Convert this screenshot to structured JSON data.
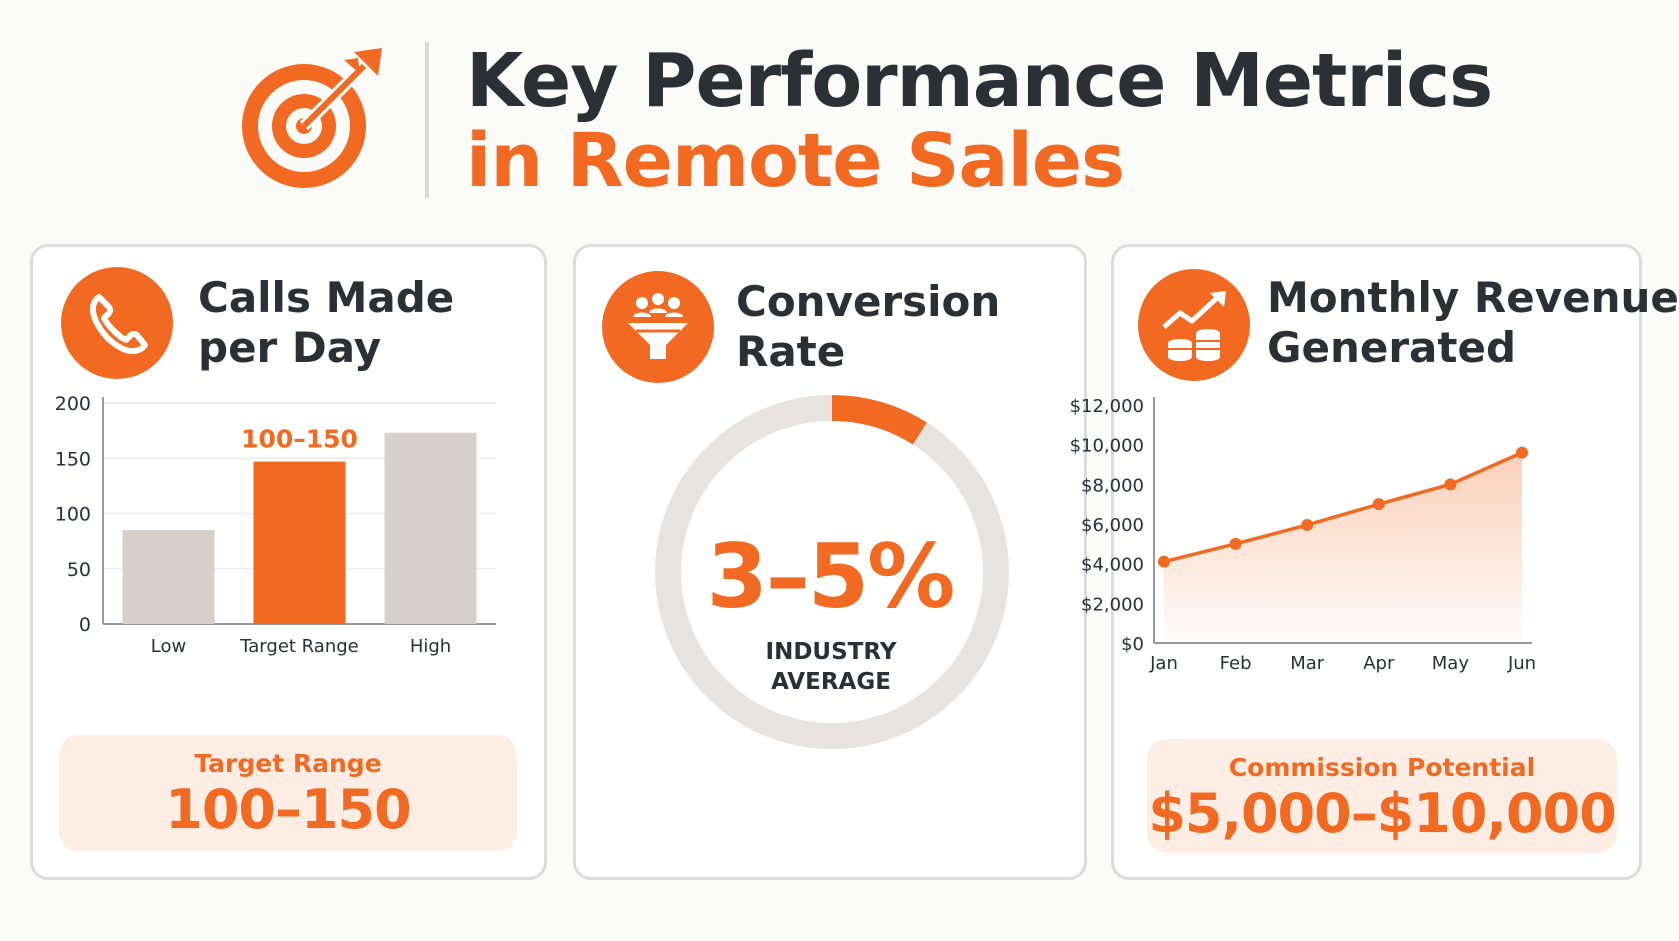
{
  "title": {
    "line1": "Key Performance Metrics",
    "line2": "in Remote Sales"
  },
  "colors": {
    "accent": "#f26a21",
    "neutral_bar": "#d6cfca",
    "text_dark": "#2b2f36",
    "ring_track": "#e6e3e0",
    "highlight_bg": "#fdede4"
  },
  "icons": {
    "header": "target-arrow-icon",
    "calls": "phone-icon",
    "conversion": "funnel-people-icon",
    "revenue": "coins-growth-icon"
  },
  "calls_card": {
    "title_line1": "Calls Made",
    "title_line2": "per Day",
    "bar_annotation": "100–150",
    "footer_label": "Target Range",
    "footer_value": "100–150"
  },
  "conversion_card": {
    "title_line1": "Conversion",
    "title_line2": "Rate",
    "value": "3–5%",
    "label_line1": "INDUSTRY",
    "label_line2": "AVERAGE"
  },
  "revenue_card": {
    "title_line1": "Monthly Revenue",
    "title_line2": "Generated",
    "footer_label": "Commission Potential",
    "footer_value": "$5,000–$10,000"
  },
  "chart_data": [
    {
      "type": "bar",
      "title": "Calls Made per Day",
      "categories": [
        "Low",
        "Target Range",
        "High"
      ],
      "values": [
        85,
        147,
        173
      ],
      "highlight_index": 1,
      "yticks": [
        "0",
        "50",
        "100",
        "150",
        "200"
      ],
      "ylim": [
        0,
        200
      ],
      "grid": true
    },
    {
      "type": "pie",
      "title": "Conversion Rate",
      "donut": true,
      "range_percent": [
        3,
        5
      ],
      "highlighted_fraction": 0.09,
      "label": "3–5%"
    },
    {
      "type": "area",
      "title": "Monthly Revenue Generated",
      "categories": [
        "Jan",
        "Feb",
        "Mar",
        "Apr",
        "May",
        "Jun"
      ],
      "values": [
        4100,
        5000,
        5950,
        7000,
        8000,
        9600
      ],
      "yticks": [
        "$0",
        "$2,000",
        "$4,000",
        "$6,000",
        "$8,000",
        "$10,000",
        "$12,000"
      ],
      "ylim": [
        0,
        12000
      ]
    }
  ]
}
